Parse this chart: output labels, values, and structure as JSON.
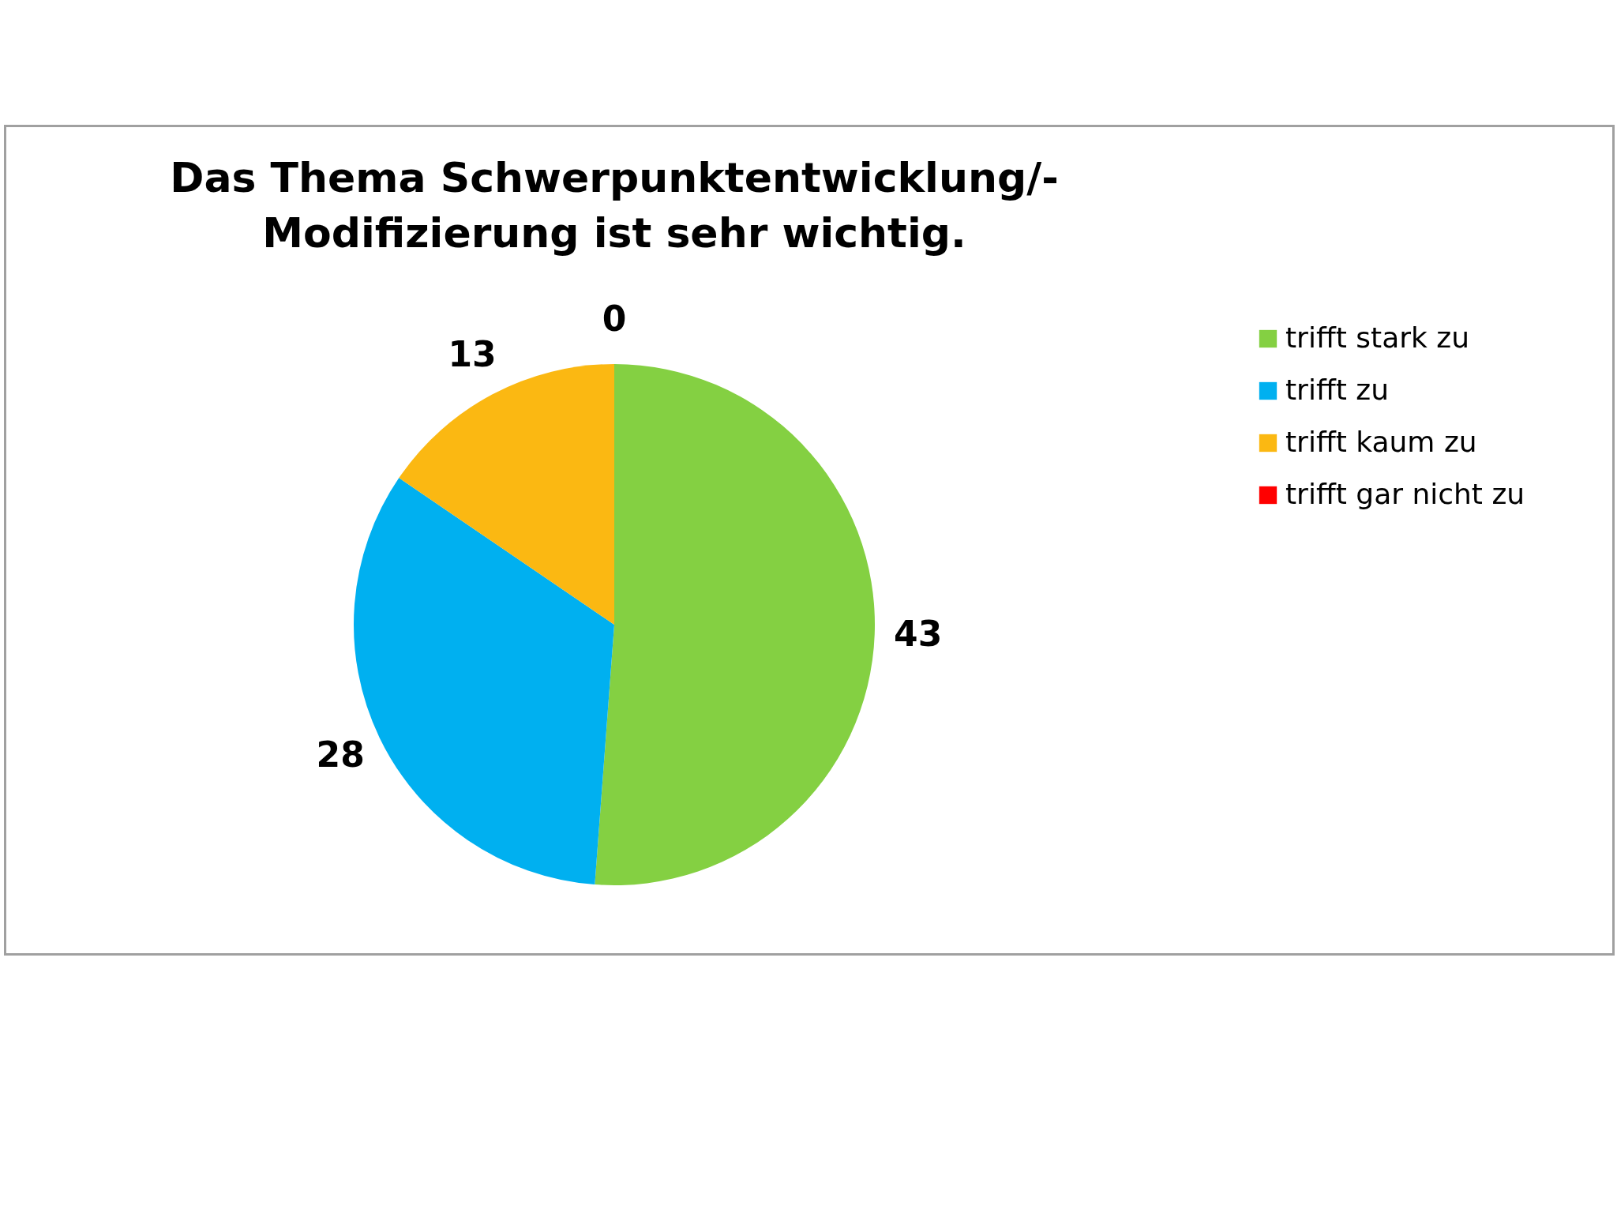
{
  "chart_data": {
    "type": "pie",
    "title": "Das Thema Schwerpunktentwicklung/- Modifizierung ist sehr wichtig.",
    "categories": [
      "trifft stark zu",
      "trifft zu",
      "trifft kaum zu",
      "trifft gar nicht zu"
    ],
    "values": [
      43,
      28,
      13,
      0
    ],
    "colors": [
      "#84d042",
      "#00b0f0",
      "#fbb812",
      "#ff0000"
    ],
    "value_labels": [
      "43",
      "28",
      "13",
      "0"
    ],
    "legend": "right"
  }
}
